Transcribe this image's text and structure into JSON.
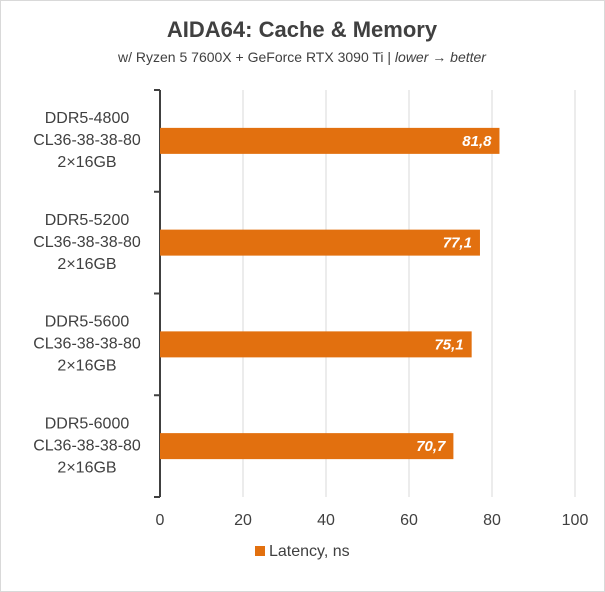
{
  "chart_data": {
    "type": "bar",
    "orientation": "horizontal",
    "title": "AIDA64: Cache & Memory",
    "subtitle": "w/ Ryzen 5 7600X + GeForce RTX 3090 Ti |",
    "subtitle_note": "lower → better",
    "categories": [
      [
        "DDR5-4800",
        "CL36-38-38-80",
        "2×16GB"
      ],
      [
        "DDR5-5200",
        "CL36-38-38-80",
        "2×16GB"
      ],
      [
        "DDR5-5600",
        "CL36-38-38-80",
        "2×16GB"
      ],
      [
        "DDR5-6000",
        "CL36-38-38-80",
        "2×16GB"
      ]
    ],
    "series": [
      {
        "name": "Latency, ns",
        "color": "#e2700f",
        "values": [
          81.8,
          77.1,
          75.1,
          70.7
        ],
        "value_labels": [
          "81,8",
          "77,1",
          "75,1",
          "70,7"
        ]
      }
    ],
    "xlim": [
      0,
      100
    ],
    "xticks": [
      0,
      20,
      40,
      60,
      80,
      100
    ],
    "grid": true,
    "legend": "bottom"
  }
}
